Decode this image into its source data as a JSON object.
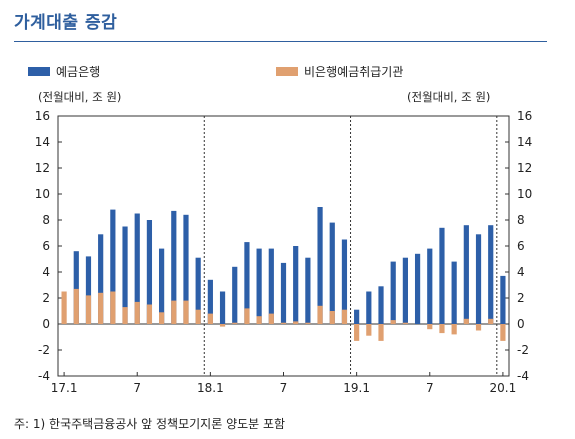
{
  "title": "가계대출 증감",
  "legend": {
    "series1": "예금은행",
    "series2": "비은행예금취급기관"
  },
  "unit_left": "(전월대비, 조 원)",
  "unit_right": "(전월대비, 조 원)",
  "footnote": "주: 1) 한국주택금융공사 앞 정책모기지론 양도분 포함",
  "colors": {
    "bank": "#2d5fa8",
    "nonbank": "#e0a070",
    "accent": "#2f5f9e"
  },
  "chart_data": {
    "type": "bar",
    "title": "가계대출 증감",
    "ylim": [
      -4,
      16
    ],
    "yticks": [
      -4,
      -2,
      0,
      2,
      4,
      6,
      8,
      10,
      12,
      14,
      16
    ],
    "x_tick_labels": [
      {
        "index": 0,
        "label": "17.1"
      },
      {
        "index": 6,
        "label": "7"
      },
      {
        "index": 12,
        "label": "18.1"
      },
      {
        "index": 18,
        "label": "7"
      },
      {
        "index": 24,
        "label": "19.1"
      },
      {
        "index": 30,
        "label": "7"
      },
      {
        "index": 36,
        "label": "20.1"
      }
    ],
    "dividers_after_index": [
      11,
      23,
      35
    ],
    "series": [
      {
        "name": "예금은행",
        "values": [
          0.0,
          5.6,
          5.2,
          6.9,
          8.8,
          7.5,
          8.5,
          8.0,
          5.8,
          8.7,
          8.4,
          5.1,
          3.4,
          2.5,
          4.4,
          6.3,
          5.8,
          5.8,
          4.7,
          6.0,
          5.1,
          9.0,
          7.8,
          6.5,
          1.1,
          2.5,
          2.9,
          4.8,
          5.1,
          5.4,
          5.8,
          7.4,
          4.8,
          7.6,
          6.9,
          7.6,
          3.7
        ]
      },
      {
        "name": "비은행예금취급기관",
        "values": [
          2.5,
          2.7,
          2.2,
          2.4,
          2.5,
          1.3,
          1.7,
          1.5,
          0.9,
          1.8,
          1.8,
          1.1,
          0.8,
          -0.2,
          0.1,
          1.2,
          0.6,
          0.8,
          0.1,
          0.2,
          0.1,
          1.4,
          1.0,
          1.1,
          -1.3,
          -0.9,
          -1.3,
          0.3,
          0.1,
          0.0,
          -0.4,
          -0.7,
          -0.8,
          0.4,
          -0.5,
          0.4,
          -1.3
        ]
      }
    ]
  }
}
